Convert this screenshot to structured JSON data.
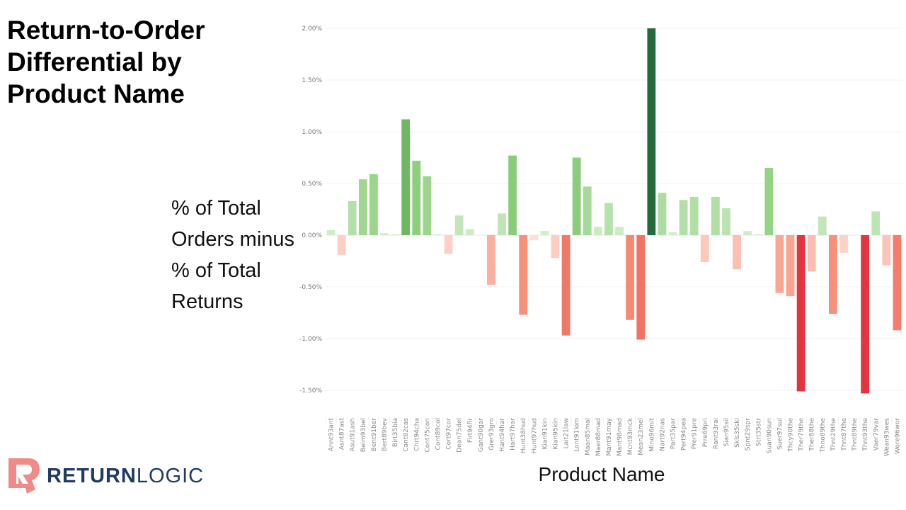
{
  "chart_data": {
    "type": "bar",
    "title": "Return-to-Order Differential by Product Name",
    "xlabel": "Product Name",
    "ylabel": "% of Total Orders minus % of Total Returns",
    "ylim": [
      -1.5,
      2.0
    ],
    "yticks": [
      -1.5,
      -1.0,
      -0.5,
      0.0,
      0.5,
      1.0,
      1.5,
      2.0
    ],
    "ytick_labels": [
      "-1.50%",
      "-1.00%",
      "-0.50%",
      "0.00%",
      "0.50%",
      "1.00%",
      "1.50%",
      "2.00%"
    ],
    "grid": true,
    "categories": [
      "Annt93ant",
      "Asnt87ast",
      "Asut91ash",
      "Beim93bel",
      "Bent91ber",
      "Bert89bev",
      "Birt35bia",
      "Cant82cas",
      "Chrt94cha",
      "Cont75con",
      "Cont89col",
      "Cort97cor",
      "Dean75del",
      "Firt94fir",
      "Gant90gar",
      "Grer93gro",
      "Hant94har",
      "Hart97har",
      "Hunt38hud",
      "Hunt97hud",
      "Kian91kin",
      "Kian95kin",
      "Lait21law",
      "Lont91lom",
      "Maan85mal",
      "Maer88mad",
      "Mant91may",
      "Mant98mad",
      "Mcnt93mck",
      "Mean23mel",
      "Mino96mit",
      "Nart92nas",
      "Part35par",
      "Pert94pea",
      "Prer91pre",
      "Prre69pri",
      "Rant93rai",
      "Sian95sil",
      "Skls35ski",
      "Spnt29spr",
      "Strt35str",
      "Suan90sun",
      "Suer97sul",
      "Thcy90the",
      "Ther79the",
      "Ther88the",
      "Thno89the",
      "Thnt29the",
      "Thnt87the",
      "Thnt89the",
      "Thnt93the",
      "Vaer79var",
      "Wean93wes",
      "Wore96wor"
    ],
    "values": [
      0.05,
      -0.19,
      0.33,
      0.54,
      0.59,
      0.02,
      0.01,
      1.12,
      0.72,
      0.57,
      0.01,
      -0.18,
      0.19,
      0.06,
      0.0,
      -0.48,
      0.21,
      0.77,
      -0.77,
      -0.05,
      0.04,
      -0.22,
      -0.97,
      0.75,
      0.47,
      0.08,
      0.31,
      0.08,
      -0.82,
      -1.01,
      2.0,
      0.41,
      0.03,
      0.34,
      0.37,
      -0.26,
      0.37,
      0.26,
      -0.33,
      0.04,
      0.01,
      0.65,
      -0.56,
      -0.59,
      -1.51,
      -0.35,
      0.18,
      -0.76,
      -0.17,
      0.0,
      -1.53,
      0.23,
      -0.29,
      -0.92
    ],
    "unit": "%",
    "colors": {
      "pos_max": "#236b3c",
      "pos_mid": "#5eae54",
      "pos_low": "#d4eecd",
      "neg_low": "#ffe3de",
      "neg_mid": "#f88c74",
      "neg_max": "#e3343f"
    }
  },
  "header": {
    "title": "Return-to-Order Differential by Product Name",
    "ylabel_lines": [
      "% of Total",
      "Orders minus",
      "% of Total",
      "Returns"
    ],
    "xlabel": "Product Name"
  },
  "logo": {
    "brand_bold": "RETURN",
    "brand_light": "LOGIC",
    "icon": "return-logic-r-icon",
    "icon_color": "#f08080",
    "text_color": "#1f3a64"
  }
}
